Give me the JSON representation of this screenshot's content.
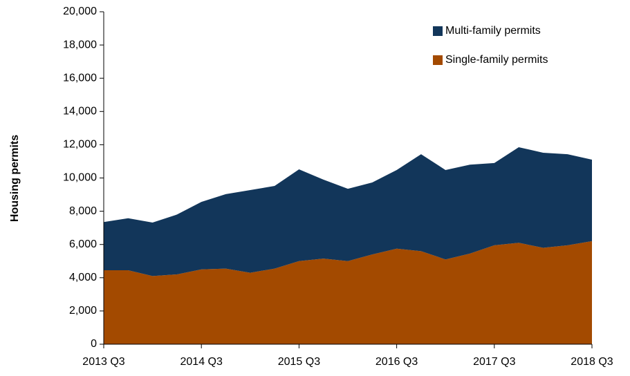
{
  "chart_data": {
    "type": "stacked_area",
    "y_label": "Housing permits",
    "categories": [
      "2013 Q3",
      null,
      null,
      null,
      "2014 Q3",
      null,
      null,
      null,
      "2015 Q3",
      null,
      null,
      null,
      "2016 Q3",
      null,
      null,
      null,
      "2017 Q3",
      null,
      null,
      null,
      "2018 Q3"
    ],
    "series": [
      {
        "name": "Single-family permits",
        "color": "#a34a00",
        "values": [
          4450,
          4450,
          4100,
          4200,
          4500,
          4550,
          4300,
          4550,
          5000,
          5150,
          5000,
          5400,
          5750,
          5600,
          5100,
          5450,
          5950,
          6100,
          5800,
          5950,
          6200
        ]
      },
      {
        "name": "Multi-family permits",
        "color": "#12365a",
        "values": [
          2900,
          3130,
          3220,
          3600,
          4060,
          4480,
          4970,
          4970,
          5520,
          4750,
          4350,
          4330,
          4730,
          5830,
          5380,
          5350,
          4950,
          5750,
          5720,
          5480,
          4900
        ]
      }
    ],
    "ylim": [
      0,
      20000
    ],
    "yticks": [
      0,
      {
        "value": 2000,
        "label": "2,000"
      },
      {
        "value": 4000,
        "label": "4,000"
      },
      {
        "value": 6000,
        "label": "6,000"
      },
      {
        "value": 8000,
        "label": "8,000"
      },
      {
        "value": 10000,
        "label": "10,000"
      },
      {
        "value": 12000,
        "label": "12,000"
      },
      {
        "value": 14000,
        "label": "14,000"
      },
      {
        "value": 16000,
        "label": "16,000"
      },
      {
        "value": 18000,
        "label": "18,000"
      },
      {
        "value": 20000,
        "label": "20,000"
      }
    ],
    "legend": "top-right",
    "grid": false
  }
}
